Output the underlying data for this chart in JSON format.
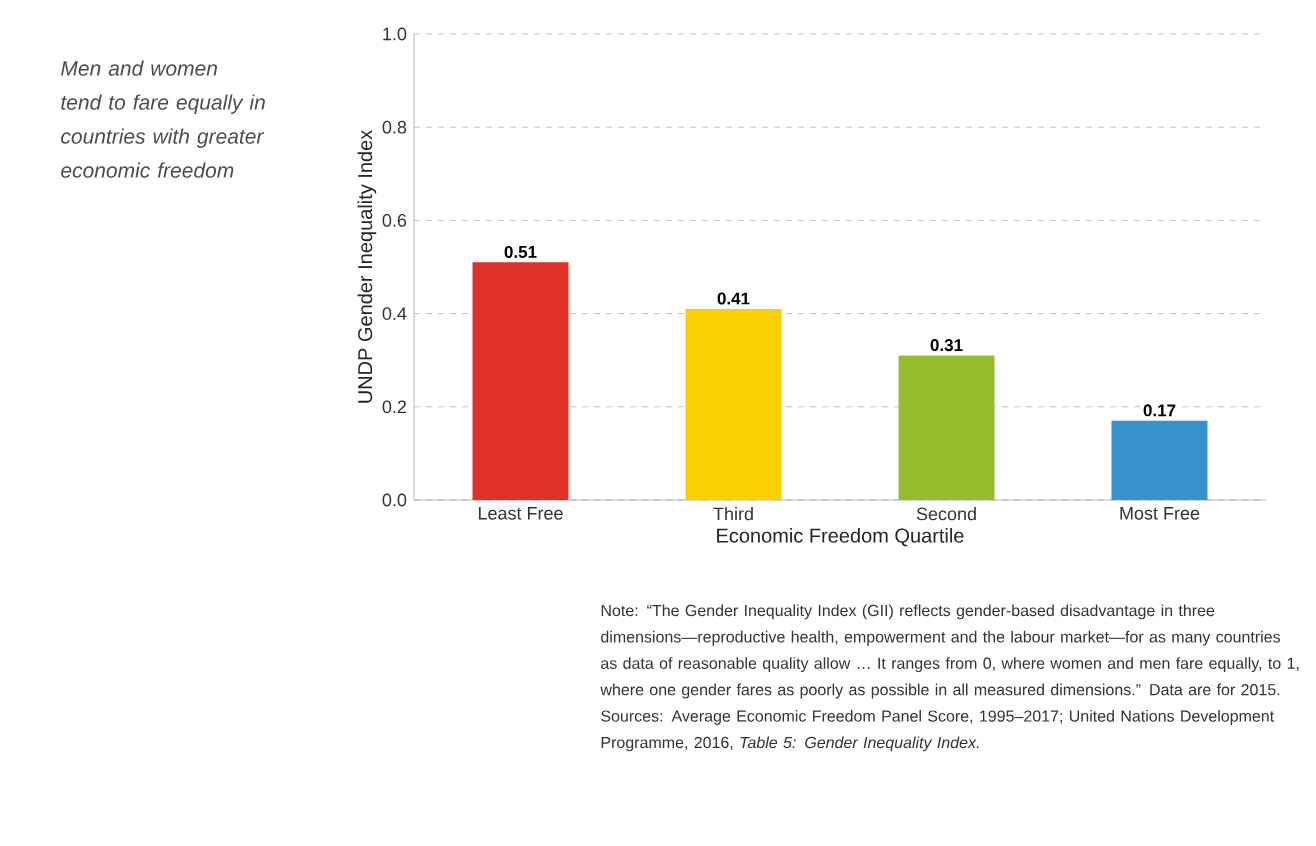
{
  "chart_data": {
    "type": "bar",
    "title": "Men and women tend to fare equally in countries with greater economic freedom",
    "xlabel": "Economic Freedom Quartile",
    "ylabel": "UNDP Gender Inequality Index",
    "categories": [
      "Least Free",
      "Third",
      "Second",
      "Most Free"
    ],
    "values": [
      0.51,
      0.41,
      0.31,
      0.17
    ],
    "colors": [
      "#e03127",
      "#fad000",
      "#95bd2d",
      "#3592cc"
    ],
    "ylim": [
      0,
      1
    ],
    "yticks": [
      {
        "value": 0,
        "label": "0.0"
      },
      {
        "value": 0.2,
        "label": "0.2"
      },
      {
        "value": 0.4,
        "label": "0.4"
      },
      {
        "value": 0.6,
        "label": "0.6"
      },
      {
        "value": 0.8,
        "label": "0.8"
      },
      {
        "value": 1,
        "label": "1.0"
      }
    ],
    "grid": "y",
    "data_labels": true,
    "annotations": [
      "Note: “The Gender Inequality Index (GII) reflects gender-based disadvantage in three dimensions—reproductive health, empowerment and the labour market—for as many countries as data of reasonable quality allow … It ranges from 0, where women and men fare equally, to 1, where one gender fares as poorly as possible in all measured dimensions.” Data are for 2015.",
      "Sources: Average Economic Freedom Panel Score, 1995–2017; United Nations Development Programme, 2016, *Table 5: Gender Inequality Index.*"
    ]
  }
}
